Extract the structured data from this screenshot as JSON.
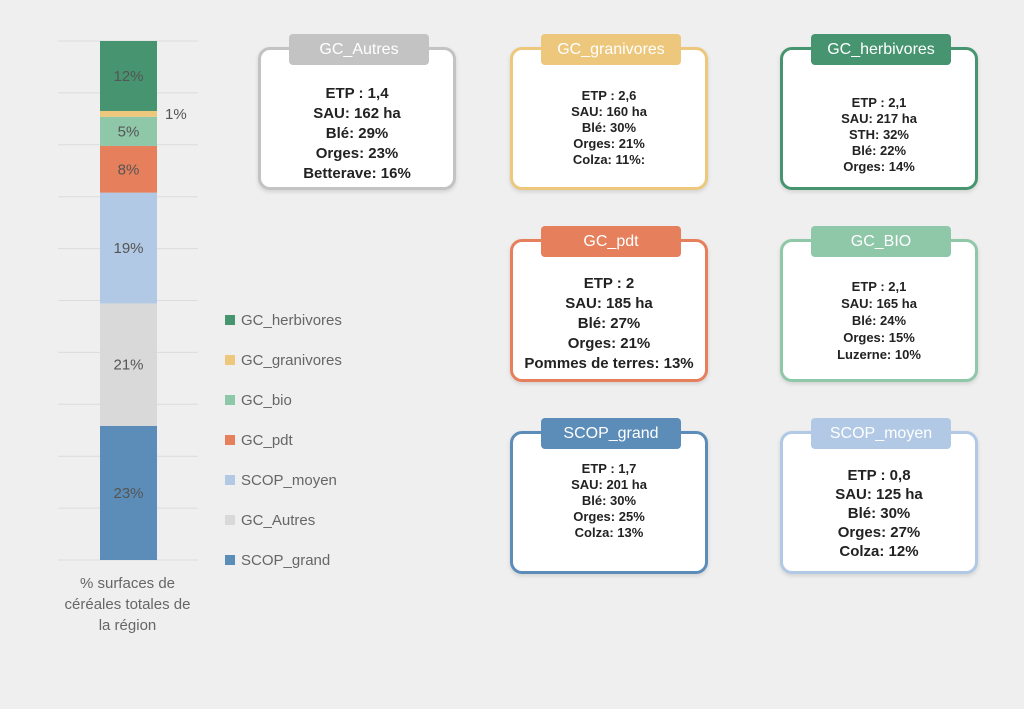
{
  "chart_data": {
    "type": "bar",
    "subtype": "stacked-100",
    "categories": [
      "% surfaces de céréales totales de la région"
    ],
    "series": [
      {
        "name": "SCOP_grand",
        "value": 23,
        "label": "23%",
        "color": "#5b8db8"
      },
      {
        "name": "GC_Autres",
        "value": 21,
        "label": "21%",
        "color": "#d9d9d9"
      },
      {
        "name": "SCOP_moyen",
        "value": 19,
        "label": "19%",
        "color": "#b1c9e4"
      },
      {
        "name": "GC_pdt",
        "value": 8,
        "label": "8%",
        "color": "#e57f5c"
      },
      {
        "name": "GC_bio",
        "value": 5,
        "label": "5%",
        "color": "#8fc7a9"
      },
      {
        "name": "GC_granivores",
        "value": 1,
        "label": "1%",
        "color": "#ecc77c"
      },
      {
        "name": "GC_herbivores",
        "value": 12,
        "label": "12%",
        "color": "#479470"
      }
    ],
    "legend_order": [
      "GC_herbivores",
      "GC_granivores",
      "GC_bio",
      "GC_pdt",
      "SCOP_moyen",
      "GC_Autres",
      "SCOP_grand"
    ],
    "legend_position": "right",
    "grid": true,
    "xlabel": "% surfaces de céréales totales de la région"
  },
  "caption_lines": [
    "% surfaces de",
    "céréales totales de",
    "la région"
  ],
  "cards": [
    {
      "title": "GC_Autres",
      "color": "#c3c3c3",
      "lines": [
        "ETP : 1,4",
        "SAU: 162 ha",
        "Blé: 29%",
        "Orges: 23%",
        "Betterave: 16%"
      ]
    },
    {
      "title": "GC_granivores",
      "color": "#ecc77c",
      "lines": [
        "ETP : 2,6",
        "SAU: 160 ha",
        "Blé: 30%",
        "Orges: 21%",
        "Colza: 11%:"
      ]
    },
    {
      "title": "GC_herbivores",
      "color": "#479470",
      "lines": [
        "ETP : 2,1",
        "SAU: 217 ha",
        "STH: 32%",
        "Blé: 22%",
        "Orges: 14%"
      ]
    },
    {
      "title": "GC_pdt",
      "color": "#e57f5c",
      "lines": [
        "ETP : 2",
        "SAU: 185 ha",
        "Blé: 27%",
        "Orges: 21%",
        "Pommes de terres: 13%"
      ]
    },
    {
      "title": "GC_BIO",
      "color": "#8fc7a9",
      "lines": [
        "ETP : 2,1",
        "SAU: 165 ha",
        "Blé: 24%",
        "Orges: 15%",
        "Luzerne: 10%"
      ]
    },
    {
      "title": "SCOP_grand",
      "color": "#5b8db8",
      "lines": [
        "ETP : 1,7",
        "SAU: 201 ha",
        "Blé: 30%",
        "Orges: 25%",
        "Colza: 13%"
      ]
    },
    {
      "title": "SCOP_moyen",
      "color": "#b1c9e4",
      "lines": [
        "ETP : 0,8",
        "SAU: 125 ha",
        "Blé: 30%",
        "Orges: 27%",
        "Colza: 12%"
      ]
    }
  ]
}
